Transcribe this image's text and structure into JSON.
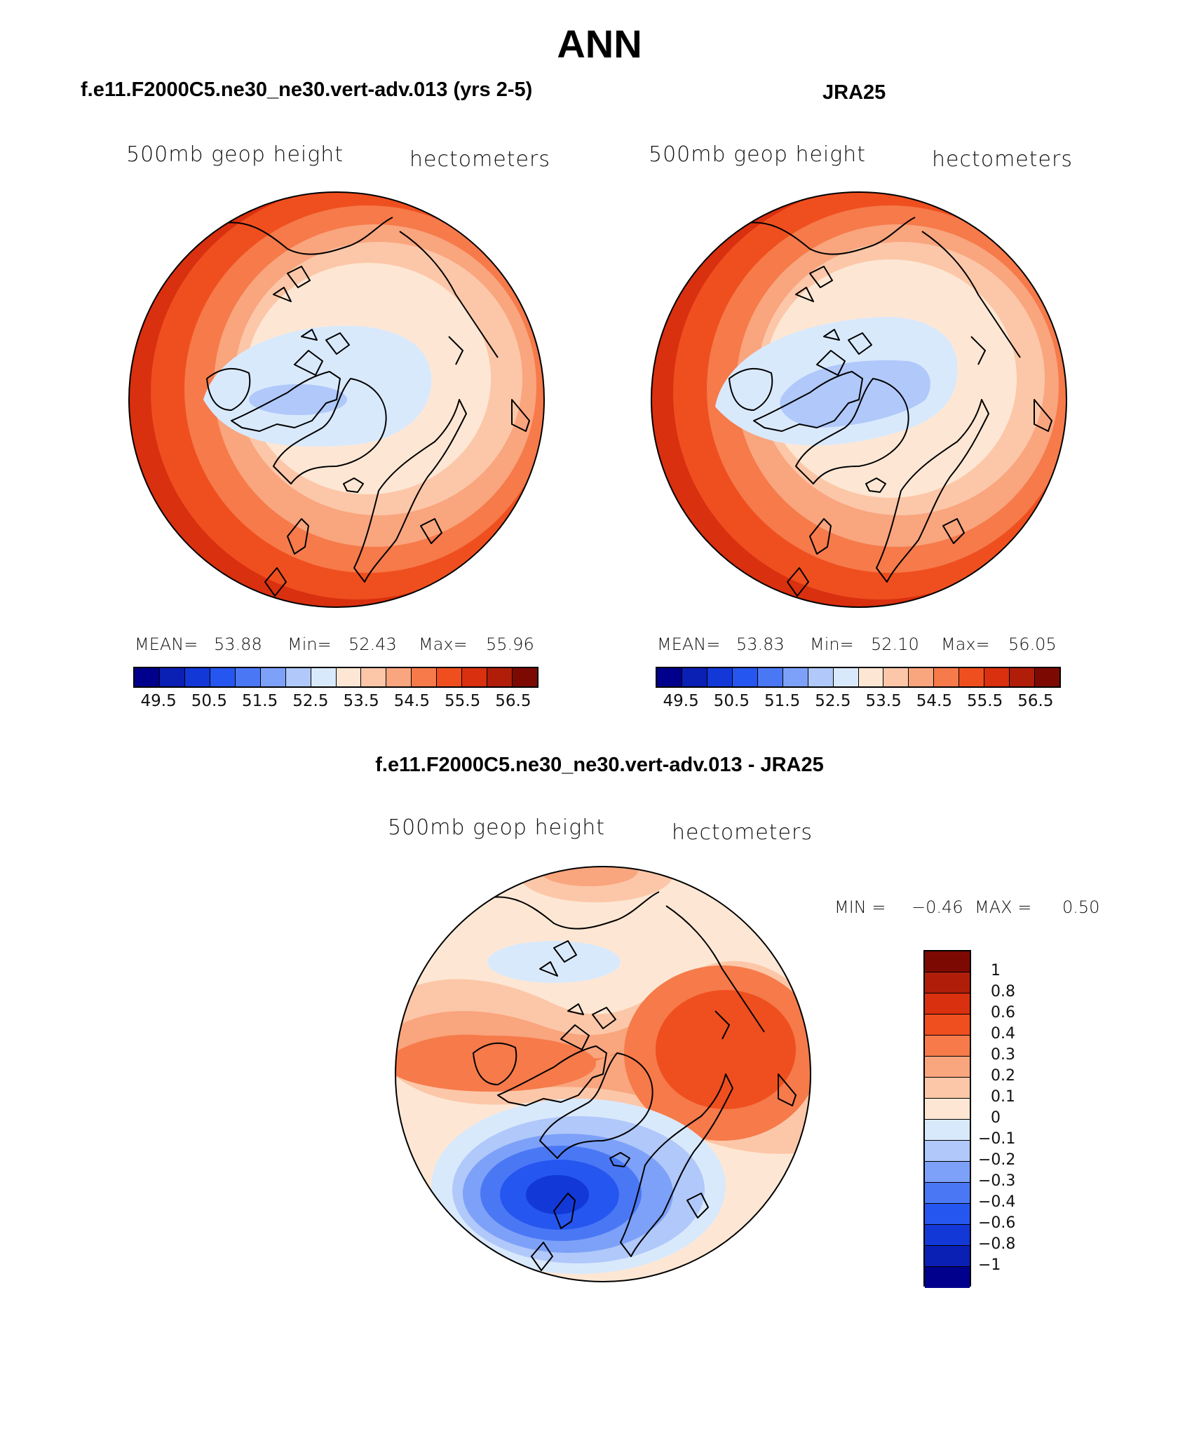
{
  "title": "ANN",
  "colors": {
    "levels16": [
      "#00008c",
      "#0a1fb4",
      "#1238d8",
      "#2656f0",
      "#4a78f5",
      "#7da1f8",
      "#b0c8fa",
      "#d9e9fc",
      "#fde7d4",
      "#fcc7a8",
      "#f9a57e",
      "#f67a4a",
      "#ef4f1f",
      "#d93010",
      "#b01e0a",
      "#7d0a02"
    ],
    "levels15": [
      "#7d0a02",
      "#b01e0a",
      "#d93010",
      "#ef4f1f",
      "#f67a4a",
      "#f9a57e",
      "#fcc7a8",
      "#fde7d4",
      "#d9e9fc",
      "#b0c8fa",
      "#7da1f8",
      "#4a78f5",
      "#2656f0",
      "#1238d8",
      "#0a1fb4",
      "#00008c"
    ]
  },
  "panels": {
    "model": {
      "title": "f.e11.F2000C5.ne30_ne30.vert-adv.013 (yrs 2-5)",
      "variable": "500mb geop height",
      "units": "hectometers",
      "mean_label": "MEAN=",
      "mean": "53.88",
      "min_label": "Min=",
      "min": "52.43",
      "max_label": "Max=",
      "max": "55.96",
      "tick_labels": [
        "49.5",
        "50.5",
        "51.5",
        "52.5",
        "53.5",
        "54.5",
        "55.5",
        "56.5"
      ]
    },
    "obs": {
      "title": "JRA25",
      "variable": "500mb geop height",
      "units": "hectometers",
      "mean_label": "MEAN=",
      "mean": "53.83",
      "min_label": "Min=",
      "min": "52.10",
      "max_label": "Max=",
      "max": "56.05",
      "tick_labels": [
        "49.5",
        "50.5",
        "51.5",
        "52.5",
        "53.5",
        "54.5",
        "55.5",
        "56.5"
      ]
    },
    "diff": {
      "title": "f.e11.F2000C5.ne30_ne30.vert-adv.013 - JRA25",
      "variable": "500mb geop height",
      "units": "hectometers",
      "min_label": "MIN =",
      "min": "−0.46",
      "max_label": "MAX =",
      "max": "0.50",
      "levels": [
        "1",
        "0.8",
        "0.6",
        "0.4",
        "0.3",
        "0.2",
        "0.1",
        "0",
        "−0.1",
        "−0.2",
        "−0.3",
        "−0.4",
        "−0.6",
        "−0.8",
        "−1"
      ]
    }
  }
}
